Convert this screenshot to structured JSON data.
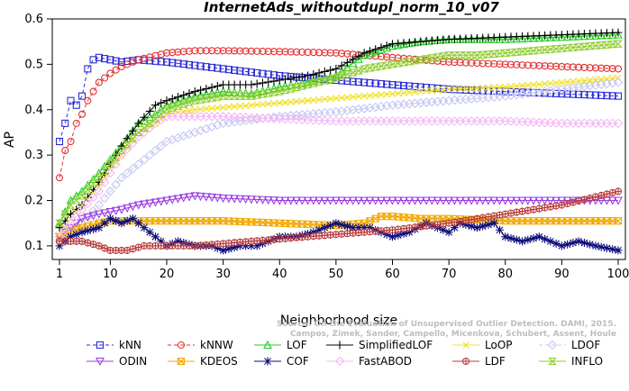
{
  "chart_data": {
    "type": "line",
    "title": "InternetAds_withoutdupl_norm_10_v07",
    "xlabel": "Neighborhood size",
    "ylabel": "AP",
    "xlim": [
      1,
      100
    ],
    "ylim": [
      0.07,
      0.6
    ],
    "xticks": [
      1,
      10,
      20,
      30,
      40,
      50,
      60,
      70,
      80,
      90,
      100
    ],
    "yticks": [
      0.1,
      0.2,
      0.3,
      0.4,
      0.5,
      0.6
    ],
    "grid": false,
    "legend_position": "bottom",
    "watermark": [
      "Source: On the Evaluation of Unsupervised Outlier Detection. DAMI, 2015.",
      "Campos, Zimek, Sander, Campello, Micenkova, Schubert, Assent, Houle"
    ],
    "series": [
      {
        "name": "kNN",
        "color": "#2b2bd6",
        "marker": "square",
        "dash": "4,3",
        "points": [
          [
            1,
            0.33
          ],
          [
            2,
            0.37
          ],
          [
            3,
            0.42
          ],
          [
            4,
            0.41
          ],
          [
            5,
            0.43
          ],
          [
            6,
            0.49
          ],
          [
            7,
            0.51
          ],
          [
            8,
            0.515
          ],
          [
            10,
            0.51
          ],
          [
            12,
            0.505
          ],
          [
            15,
            0.51
          ],
          [
            20,
            0.505
          ],
          [
            30,
            0.49
          ],
          [
            40,
            0.475
          ],
          [
            50,
            0.465
          ],
          [
            60,
            0.455
          ],
          [
            70,
            0.445
          ],
          [
            80,
            0.44
          ],
          [
            90,
            0.435
          ],
          [
            100,
            0.43
          ]
        ]
      },
      {
        "name": "kNNW",
        "color": "#e53030",
        "marker": "circle",
        "dash": "4,3",
        "points": [
          [
            1,
            0.25
          ],
          [
            2,
            0.31
          ],
          [
            3,
            0.33
          ],
          [
            4,
            0.37
          ],
          [
            5,
            0.39
          ],
          [
            6,
            0.42
          ],
          [
            7,
            0.44
          ],
          [
            8,
            0.46
          ],
          [
            10,
            0.48
          ],
          [
            12,
            0.495
          ],
          [
            15,
            0.51
          ],
          [
            20,
            0.525
          ],
          [
            25,
            0.53
          ],
          [
            30,
            0.53
          ],
          [
            40,
            0.528
          ],
          [
            50,
            0.525
          ],
          [
            60,
            0.515
          ],
          [
            70,
            0.505
          ],
          [
            80,
            0.5
          ],
          [
            90,
            0.495
          ],
          [
            100,
            0.49
          ]
        ]
      },
      {
        "name": "LOF",
        "color": "#22cc22",
        "marker": "triangle-up",
        "dash": "",
        "points": [
          [
            1,
            0.15
          ],
          [
            3,
            0.2
          ],
          [
            5,
            0.22
          ],
          [
            8,
            0.26
          ],
          [
            10,
            0.29
          ],
          [
            12,
            0.32
          ],
          [
            15,
            0.37
          ],
          [
            18,
            0.39
          ],
          [
            20,
            0.41
          ],
          [
            25,
            0.43
          ],
          [
            30,
            0.44
          ],
          [
            35,
            0.435
          ],
          [
            40,
            0.45
          ],
          [
            45,
            0.46
          ],
          [
            50,
            0.475
          ],
          [
            55,
            0.52
          ],
          [
            60,
            0.54
          ],
          [
            65,
            0.55
          ],
          [
            70,
            0.555
          ],
          [
            80,
            0.555
          ],
          [
            90,
            0.56
          ],
          [
            100,
            0.565
          ]
        ]
      },
      {
        "name": "SimplifiedLOF",
        "color": "#000000",
        "marker": "plus",
        "dash": "",
        "points": [
          [
            1,
            0.14
          ],
          [
            3,
            0.17
          ],
          [
            5,
            0.19
          ],
          [
            8,
            0.24
          ],
          [
            10,
            0.28
          ],
          [
            12,
            0.32
          ],
          [
            15,
            0.37
          ],
          [
            18,
            0.41
          ],
          [
            20,
            0.42
          ],
          [
            25,
            0.44
          ],
          [
            30,
            0.455
          ],
          [
            35,
            0.455
          ],
          [
            40,
            0.465
          ],
          [
            45,
            0.475
          ],
          [
            50,
            0.49
          ],
          [
            55,
            0.525
          ],
          [
            60,
            0.545
          ],
          [
            65,
            0.55
          ],
          [
            70,
            0.555
          ],
          [
            80,
            0.56
          ],
          [
            90,
            0.565
          ],
          [
            100,
            0.57
          ]
        ]
      },
      {
        "name": "LoOP",
        "color": "#f0e02a",
        "marker": "cross",
        "dash": "",
        "points": [
          [
            1,
            0.12
          ],
          [
            3,
            0.16
          ],
          [
            5,
            0.19
          ],
          [
            8,
            0.23
          ],
          [
            10,
            0.27
          ],
          [
            12,
            0.3
          ],
          [
            15,
            0.35
          ],
          [
            18,
            0.37
          ],
          [
            20,
            0.39
          ],
          [
            25,
            0.4
          ],
          [
            30,
            0.405
          ],
          [
            40,
            0.415
          ],
          [
            50,
            0.425
          ],
          [
            60,
            0.435
          ],
          [
            70,
            0.445
          ],
          [
            80,
            0.45
          ],
          [
            90,
            0.46
          ],
          [
            100,
            0.47
          ]
        ]
      },
      {
        "name": "LDOF",
        "color": "#c6c8f2",
        "marker": "diamond",
        "dash": "4,3",
        "points": [
          [
            1,
            0.11
          ],
          [
            3,
            0.13
          ],
          [
            5,
            0.15
          ],
          [
            8,
            0.19
          ],
          [
            10,
            0.22
          ],
          [
            12,
            0.25
          ],
          [
            15,
            0.28
          ],
          [
            18,
            0.31
          ],
          [
            20,
            0.33
          ],
          [
            25,
            0.35
          ],
          [
            30,
            0.37
          ],
          [
            40,
            0.385
          ],
          [
            50,
            0.395
          ],
          [
            60,
            0.41
          ],
          [
            70,
            0.42
          ],
          [
            80,
            0.43
          ],
          [
            90,
            0.445
          ],
          [
            100,
            0.46
          ]
        ]
      },
      {
        "name": "ODIN",
        "color": "#9a3ee0",
        "marker": "triangle-down",
        "dash": "",
        "points": [
          [
            1,
            0.12
          ],
          [
            3,
            0.14
          ],
          [
            5,
            0.16
          ],
          [
            8,
            0.17
          ],
          [
            10,
            0.175
          ],
          [
            12,
            0.18
          ],
          [
            15,
            0.19
          ],
          [
            20,
            0.2
          ],
          [
            25,
            0.21
          ],
          [
            30,
            0.205
          ],
          [
            40,
            0.2
          ],
          [
            50,
            0.2
          ],
          [
            60,
            0.2
          ],
          [
            70,
            0.2
          ],
          [
            80,
            0.2
          ],
          [
            90,
            0.2
          ],
          [
            100,
            0.2
          ]
        ]
      },
      {
        "name": "KDEOS",
        "color": "#f0a800",
        "marker": "square-x",
        "dash": "",
        "points": [
          [
            1,
            0.12
          ],
          [
            3,
            0.13
          ],
          [
            5,
            0.14
          ],
          [
            8,
            0.15
          ],
          [
            10,
            0.155
          ],
          [
            15,
            0.155
          ],
          [
            20,
            0.155
          ],
          [
            30,
            0.155
          ],
          [
            40,
            0.15
          ],
          [
            50,
            0.145
          ],
          [
            55,
            0.15
          ],
          [
            58,
            0.165
          ],
          [
            60,
            0.165
          ],
          [
            65,
            0.16
          ],
          [
            70,
            0.16
          ],
          [
            80,
            0.155
          ],
          [
            90,
            0.155
          ],
          [
            100,
            0.155
          ]
        ]
      },
      {
        "name": "COF",
        "color": "#0a0a7a",
        "marker": "asterisk",
        "dash": "",
        "points": [
          [
            1,
            0.1
          ],
          [
            3,
            0.12
          ],
          [
            5,
            0.13
          ],
          [
            8,
            0.14
          ],
          [
            10,
            0.16
          ],
          [
            12,
            0.15
          ],
          [
            14,
            0.16
          ],
          [
            16,
            0.14
          ],
          [
            18,
            0.12
          ],
          [
            20,
            0.1
          ],
          [
            22,
            0.11
          ],
          [
            25,
            0.1
          ],
          [
            28,
            0.1
          ],
          [
            30,
            0.09
          ],
          [
            33,
            0.1
          ],
          [
            36,
            0.1
          ],
          [
            40,
            0.12
          ],
          [
            43,
            0.12
          ],
          [
            46,
            0.13
          ],
          [
            50,
            0.15
          ],
          [
            53,
            0.14
          ],
          [
            56,
            0.14
          ],
          [
            60,
            0.12
          ],
          [
            63,
            0.13
          ],
          [
            66,
            0.15
          ],
          [
            70,
            0.13
          ],
          [
            72,
            0.15
          ],
          [
            75,
            0.14
          ],
          [
            78,
            0.15
          ],
          [
            80,
            0.12
          ],
          [
            83,
            0.11
          ],
          [
            86,
            0.12
          ],
          [
            90,
            0.1
          ],
          [
            93,
            0.11
          ],
          [
            96,
            0.1
          ],
          [
            100,
            0.09
          ]
        ]
      },
      {
        "name": "FastABOD",
        "color": "#f4b8f4",
        "marker": "diamond",
        "dash": "",
        "points": [
          [
            1,
            0.12
          ],
          [
            3,
            0.15
          ],
          [
            5,
            0.18
          ],
          [
            8,
            0.22
          ],
          [
            10,
            0.26
          ],
          [
            12,
            0.3
          ],
          [
            15,
            0.34
          ],
          [
            18,
            0.37
          ],
          [
            20,
            0.385
          ],
          [
            25,
            0.385
          ],
          [
            30,
            0.385
          ],
          [
            40,
            0.38
          ],
          [
            50,
            0.375
          ],
          [
            60,
            0.375
          ],
          [
            70,
            0.375
          ],
          [
            80,
            0.375
          ],
          [
            90,
            0.37
          ],
          [
            100,
            0.37
          ]
        ]
      },
      {
        "name": "LDF",
        "color": "#b83b3b",
        "marker": "circle-plus",
        "dash": "",
        "points": [
          [
            1,
            0.11
          ],
          [
            3,
            0.11
          ],
          [
            5,
            0.11
          ],
          [
            8,
            0.1
          ],
          [
            10,
            0.09
          ],
          [
            13,
            0.09
          ],
          [
            16,
            0.1
          ],
          [
            20,
            0.1
          ],
          [
            25,
            0.1
          ],
          [
            30,
            0.105
          ],
          [
            40,
            0.115
          ],
          [
            50,
            0.125
          ],
          [
            60,
            0.135
          ],
          [
            70,
            0.15
          ],
          [
            80,
            0.17
          ],
          [
            90,
            0.19
          ],
          [
            95,
            0.205
          ],
          [
            100,
            0.22
          ]
        ]
      },
      {
        "name": "INFLO",
        "color": "#90cc30",
        "marker": "hourglass",
        "dash": "",
        "points": [
          [
            1,
            0.15
          ],
          [
            3,
            0.19
          ],
          [
            5,
            0.21
          ],
          [
            8,
            0.25
          ],
          [
            10,
            0.28
          ],
          [
            12,
            0.31
          ],
          [
            15,
            0.35
          ],
          [
            18,
            0.38
          ],
          [
            20,
            0.4
          ],
          [
            25,
            0.42
          ],
          [
            30,
            0.43
          ],
          [
            35,
            0.43
          ],
          [
            40,
            0.44
          ],
          [
            45,
            0.455
          ],
          [
            50,
            0.47
          ],
          [
            55,
            0.49
          ],
          [
            60,
            0.5
          ],
          [
            65,
            0.51
          ],
          [
            70,
            0.52
          ],
          [
            75,
            0.52
          ],
          [
            80,
            0.525
          ],
          [
            90,
            0.535
          ],
          [
            100,
            0.545
          ]
        ]
      }
    ]
  }
}
